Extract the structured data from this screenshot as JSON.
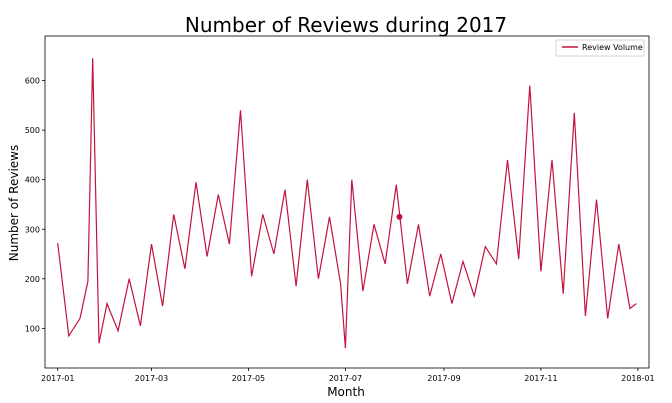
{
  "chart_data": {
    "type": "line",
    "title": "Number of Reviews during 2017",
    "xlabel": "Month",
    "ylabel": "Number of Reviews",
    "xlim": [
      "2016-12-24",
      "2018-01-08"
    ],
    "ylim": [
      20,
      690
    ],
    "x_ticks": [
      "2017-01",
      "2017-03",
      "2017-05",
      "2017-07",
      "2017-09",
      "2017-11",
      "2018-01"
    ],
    "x_tick_dates": [
      "2017-01-01",
      "2017-03-01",
      "2017-05-01",
      "2017-07-01",
      "2017-09-01",
      "2017-11-01",
      "2018-01-01"
    ],
    "y_ticks": [
      100,
      200,
      300,
      400,
      500,
      600
    ],
    "grid": false,
    "legend_position": "top-right",
    "line_color": "#c4123e",
    "series": [
      {
        "name": "Review Volume",
        "x": [
          "2017-01-01",
          "2017-01-08",
          "2017-01-15",
          "2017-01-20",
          "2017-01-23",
          "2017-01-27",
          "2017-02-01",
          "2017-02-08",
          "2017-02-15",
          "2017-02-22",
          "2017-03-01",
          "2017-03-08",
          "2017-03-15",
          "2017-03-22",
          "2017-03-29",
          "2017-04-05",
          "2017-04-12",
          "2017-04-19",
          "2017-04-26",
          "2017-05-03",
          "2017-05-10",
          "2017-05-17",
          "2017-05-24",
          "2017-05-31",
          "2017-06-07",
          "2017-06-14",
          "2017-06-21",
          "2017-06-28",
          "2017-07-01",
          "2017-07-05",
          "2017-07-12",
          "2017-07-19",
          "2017-07-26",
          "2017-08-02",
          "2017-08-09",
          "2017-08-16",
          "2017-08-23",
          "2017-08-30",
          "2017-09-06",
          "2017-09-13",
          "2017-09-20",
          "2017-09-27",
          "2017-10-04",
          "2017-10-11",
          "2017-10-18",
          "2017-10-25",
          "2017-11-01",
          "2017-11-08",
          "2017-11-15",
          "2017-11-22",
          "2017-11-29",
          "2017-12-06",
          "2017-12-13",
          "2017-12-20",
          "2017-12-27",
          "2017-12-31"
        ],
        "values": [
          272,
          85,
          120,
          195,
          645,
          70,
          150,
          95,
          200,
          105,
          270,
          145,
          330,
          220,
          395,
          245,
          370,
          270,
          540,
          205,
          330,
          250,
          380,
          185,
          400,
          200,
          325,
          190,
          60,
          400,
          175,
          310,
          230,
          390,
          190,
          310,
          165,
          250,
          150,
          235,
          165,
          265,
          230,
          440,
          240,
          590,
          215,
          440,
          170,
          535,
          125,
          360,
          120,
          270,
          140,
          150
        ]
      }
    ],
    "highlight_point": {
      "x": "2017-08-04",
      "y": 325
    }
  }
}
